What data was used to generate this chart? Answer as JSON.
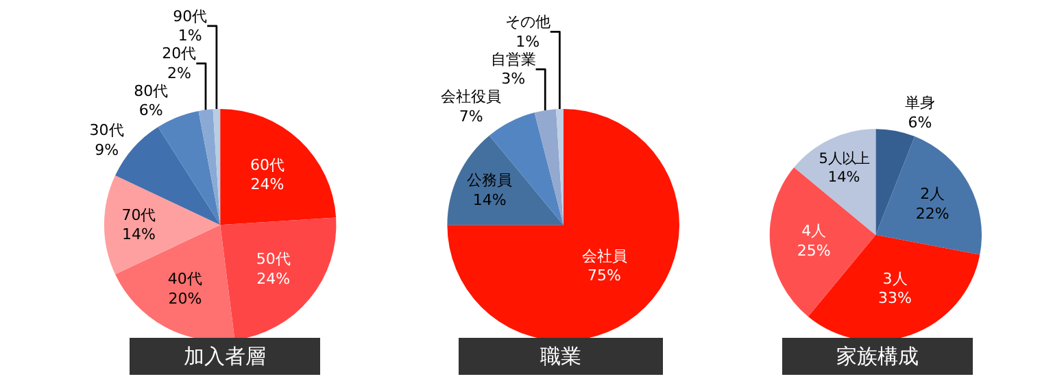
{
  "chart_data": [
    {
      "type": "pie",
      "title": "加入者層",
      "categories": [
        "60代",
        "50代",
        "40代",
        "70代",
        "30代",
        "80代",
        "20代",
        "90代"
      ],
      "values": [
        24,
        24,
        20,
        14,
        9,
        6,
        2,
        1
      ],
      "value_labels": [
        "24%",
        "24%",
        "20%",
        "14%",
        "9%",
        "6%",
        "2%",
        "1%"
      ],
      "colors": [
        "#ff1500",
        "#ff4646",
        "#ff7070",
        "#ffa0a0",
        "#4070ad",
        "#5585c0",
        "#8aaad5",
        "#b8cce4"
      ]
    },
    {
      "type": "pie",
      "title": "職業",
      "categories": [
        "会社員",
        "公務員",
        "会社役員",
        "自営業",
        "その他"
      ],
      "values": [
        75,
        14,
        7,
        3,
        1
      ],
      "value_labels": [
        "75%",
        "14%",
        "7%",
        "3%",
        "1%"
      ],
      "colors": [
        "#ff1500",
        "#44709f",
        "#5385c2",
        "#93a9cf",
        "#c0d0e6"
      ]
    },
    {
      "type": "pie",
      "title": "家族構成",
      "categories": [
        "単身",
        "2人",
        "3人",
        "4人",
        "5人以上"
      ],
      "values": [
        6,
        22,
        33,
        25,
        14
      ],
      "value_labels": [
        "6%",
        "22%",
        "33%",
        "25%",
        "14%"
      ],
      "colors": [
        "#365f91",
        "#4876aa",
        "#ff1500",
        "#ff5050",
        "#b9c6de"
      ]
    }
  ]
}
